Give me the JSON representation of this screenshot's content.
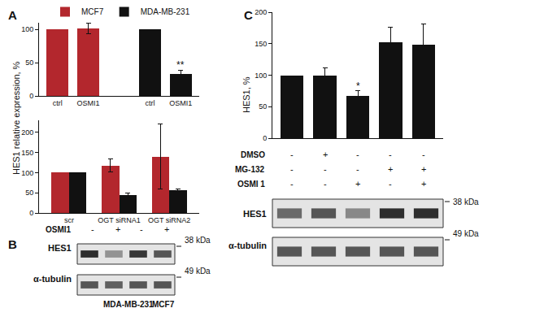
{
  "panel_labels": [
    "A",
    "B",
    "C"
  ],
  "panel_A_ylabel": "HES1 relative expression, %",
  "chart_data": [
    {
      "type": "bar",
      "categories": [
        "ctrl",
        "OSMI1",
        null,
        "ctrl",
        "OSMI1"
      ],
      "series": [
        {
          "name": "MCF7",
          "color": "#b3272d",
          "values": [
            100,
            101,
            null,
            null,
            null
          ],
          "errors": [
            null,
            8,
            null,
            null,
            null
          ]
        },
        {
          "name": "MDA-MB-231",
          "color": "#111111",
          "values": [
            null,
            null,
            null,
            100,
            33
          ],
          "errors": [
            null,
            null,
            null,
            null,
            6
          ],
          "significance": [
            null,
            null,
            null,
            null,
            "**"
          ]
        }
      ],
      "ylim": [
        0,
        110
      ],
      "yticks": [
        0,
        50,
        100
      ],
      "grid": false,
      "legend": "top"
    },
    {
      "type": "bar",
      "categories": [
        "scr",
        "OGT siRNA1",
        "OGT siRNA2"
      ],
      "series": [
        {
          "name": "MCF7",
          "color": "#b3272d",
          "values": [
            100,
            118,
            140
          ],
          "errors": [
            null,
            17,
            80
          ]
        },
        {
          "name": "MDA-MB-231",
          "color": "#111111",
          "values": [
            100,
            45,
            57
          ],
          "errors": [
            null,
            4,
            2
          ]
        }
      ],
      "ylim": [
        0,
        230
      ],
      "yticks": [
        0,
        50,
        100,
        150,
        200
      ],
      "grid": false
    },
    {
      "type": "bar",
      "ylabel": "HES1, %",
      "categories": [
        null,
        null,
        null,
        null,
        null
      ],
      "series": [
        {
          "name": "HES1",
          "color": "#111111",
          "values": [
            100,
            100,
            67,
            152,
            148
          ],
          "errors": [
            null,
            11,
            8,
            24,
            33
          ],
          "significance": [
            null,
            null,
            "*",
            null,
            null
          ]
        }
      ],
      "ylim": [
        0,
        200
      ],
      "yticks": [
        0,
        50,
        100,
        150,
        200
      ],
      "grid": false,
      "tick_labels": "y",
      "treatments": [
        {
          "label": "DMSO",
          "marks": [
            "-",
            "+",
            "-",
            "-",
            "-"
          ]
        },
        {
          "label": "MG-132",
          "marks": [
            "-",
            "-",
            "-",
            "+",
            "+"
          ]
        },
        {
          "label": "OSMI 1",
          "marks": [
            "-",
            "-",
            "+",
            "-",
            "+"
          ]
        }
      ]
    }
  ],
  "blots": [
    {
      "panel": "B",
      "header": {
        "label": "OSMI1",
        "lanes": [
          "-",
          "+",
          "-",
          "+"
        ]
      },
      "rows": [
        {
          "label": "HES1",
          "kda": "38 kDa",
          "intensity": [
            0.9,
            0.4,
            0.85,
            0.7
          ]
        },
        {
          "label": "α-tubulin",
          "kda": "49 kDa",
          "intensity": [
            0.7,
            0.65,
            0.7,
            0.7
          ]
        }
      ],
      "caption": [
        "MDA-MB-231",
        "MCF7"
      ]
    },
    {
      "panel": "C",
      "rows": [
        {
          "label": "HES1",
          "kda": "38 kDa",
          "intensity": [
            0.6,
            0.7,
            0.45,
            0.9,
            0.9
          ]
        },
        {
          "label": "α-tubulin",
          "kda": "49 kDa",
          "intensity": [
            0.7,
            0.7,
            0.7,
            0.7,
            0.7
          ]
        }
      ]
    }
  ]
}
